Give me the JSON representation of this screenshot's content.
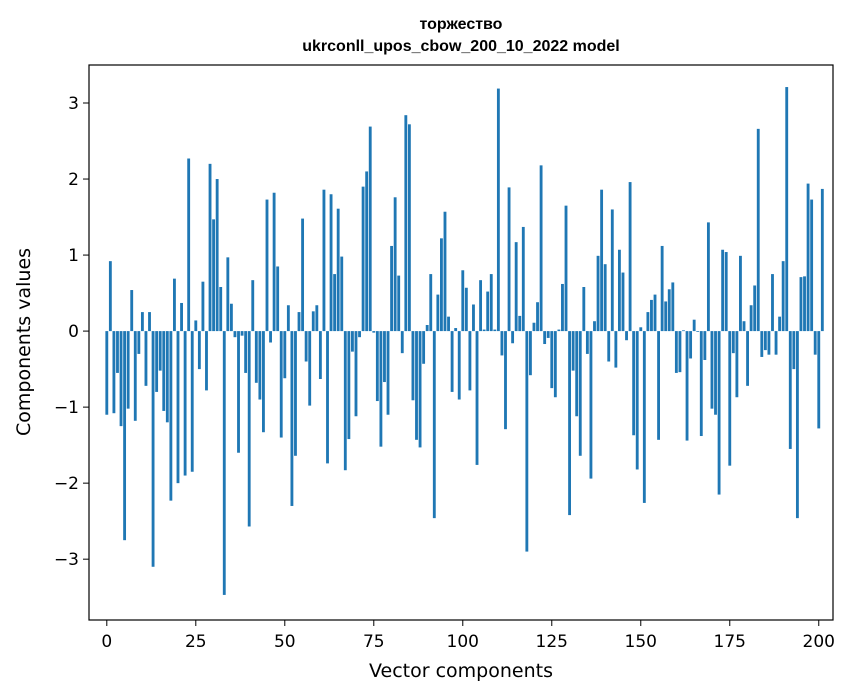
{
  "chart_data": {
    "type": "bar",
    "title": "торжество",
    "subtitle": "ukrconll_upos_cbow_200_10_2022 model",
    "xlabel": "Vector components",
    "ylabel": "Components values",
    "xlim": [
      -5,
      204
    ],
    "ylim": [
      -3.8,
      3.5
    ],
    "xticks": [
      0,
      25,
      50,
      75,
      100,
      125,
      150,
      175,
      200
    ],
    "yticks": [
      -3,
      -2,
      -1,
      0,
      1,
      2,
      3
    ],
    "xtick_labels": [
      "0",
      "25",
      "50",
      "75",
      "100",
      "125",
      "150",
      "175",
      "200"
    ],
    "ytick_labels": [
      "−3",
      "−2",
      "−1",
      "0",
      "1",
      "2",
      "3"
    ],
    "bar_color": "#1f77b4",
    "values": [
      -1.1,
      0.92,
      -1.08,
      -0.55,
      -1.25,
      -2.75,
      -1.02,
      0.54,
      -1.18,
      -0.3,
      0.25,
      -0.72,
      0.25,
      -3.1,
      -0.8,
      -0.52,
      -1.05,
      -1.2,
      -2.23,
      0.69,
      -2.0,
      0.37,
      -1.9,
      2.27,
      -1.85,
      0.14,
      -0.5,
      0.65,
      -0.78,
      2.2,
      1.47,
      2.0,
      0.58,
      -3.47,
      0.97,
      0.36,
      -0.08,
      -1.6,
      -0.06,
      -0.55,
      -2.57,
      0.67,
      -0.68,
      -0.9,
      -1.33,
      1.73,
      -0.15,
      1.82,
      0.85,
      -1.4,
      -0.62,
      0.34,
      -2.3,
      -1.64,
      0.25,
      1.48,
      -0.4,
      -0.98,
      0.26,
      0.34,
      -0.63,
      1.86,
      -1.74,
      1.8,
      0.75,
      1.61,
      0.98,
      -1.83,
      -1.42,
      -0.27,
      -1.12,
      -0.08,
      1.9,
      2.1,
      2.69,
      -0.02,
      -0.92,
      -1.52,
      -0.67,
      -1.1,
      1.12,
      1.76,
      0.73,
      -0.29,
      2.84,
      2.72,
      -0.91,
      -1.43,
      -1.53,
      -0.43,
      0.08,
      0.75,
      -2.46,
      0.48,
      1.22,
      1.57,
      0.19,
      -0.8,
      0.04,
      -0.9,
      0.8,
      0.57,
      -0.78,
      0.35,
      -1.76,
      0.67,
      0.02,
      0.52,
      0.75,
      0.02,
      3.19,
      -0.32,
      -1.29,
      1.89,
      -0.16,
      1.17,
      0.2,
      1.37,
      -2.9,
      -0.58,
      0.11,
      0.38,
      2.18,
      -0.17,
      -0.09,
      -0.75,
      -0.87,
      0.02,
      0.62,
      1.65,
      -2.42,
      -0.52,
      -1.12,
      -1.64,
      0.58,
      -0.3,
      -1.94,
      0.13,
      0.99,
      1.86,
      0.88,
      -0.4,
      1.6,
      -0.48,
      1.07,
      0.77,
      -0.12,
      1.96,
      -1.37,
      -1.82,
      0.05,
      -2.26,
      0.25,
      0.41,
      0.48,
      -1.43,
      1.12,
      0.39,
      0.55,
      0.64,
      -0.55,
      -0.54,
      0.01,
      -1.44,
      -0.36,
      0.15,
      -0.01,
      -1.38,
      -0.38,
      1.43,
      -1.02,
      -1.1,
      -2.15,
      1.07,
      1.04,
      -1.77,
      -0.29,
      -0.87,
      0.99,
      0.13,
      -0.72,
      0.34,
      0.6,
      2.66,
      -0.34,
      -0.25,
      -0.31,
      0.75,
      -0.31,
      0.19,
      0.92,
      3.21,
      -1.55,
      -0.5,
      -2.46,
      0.71,
      0.72,
      1.94,
      1.73,
      -0.31,
      -1.28,
      1.87
    ]
  }
}
